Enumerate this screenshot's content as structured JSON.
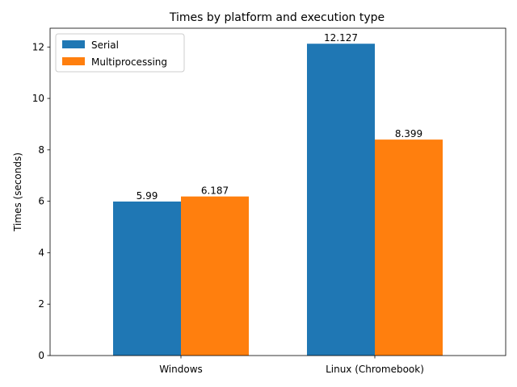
{
  "chart_data": {
    "type": "bar",
    "title": "Times by platform and execution type",
    "xlabel": "",
    "ylabel": "Times (seconds)",
    "categories": [
      "Windows",
      "Linux (Chromebook)"
    ],
    "series": [
      {
        "name": "Serial",
        "values": [
          5.99,
          12.127
        ],
        "labels": [
          "5.99",
          "12.127"
        ],
        "color": "#1f77b4"
      },
      {
        "name": "Multiprocessing",
        "values": [
          6.187,
          8.399
        ],
        "labels": [
          "6.187",
          "8.399"
        ],
        "color": "#ff7f0e"
      }
    ],
    "ylim": [
      0,
      12.73
    ],
    "yticks": [
      0,
      2,
      4,
      6,
      8,
      10,
      12
    ],
    "ytick_labels": [
      "0",
      "2",
      "4",
      "6",
      "8",
      "10",
      "12"
    ],
    "grid": false,
    "legend_position": "top-left"
  }
}
